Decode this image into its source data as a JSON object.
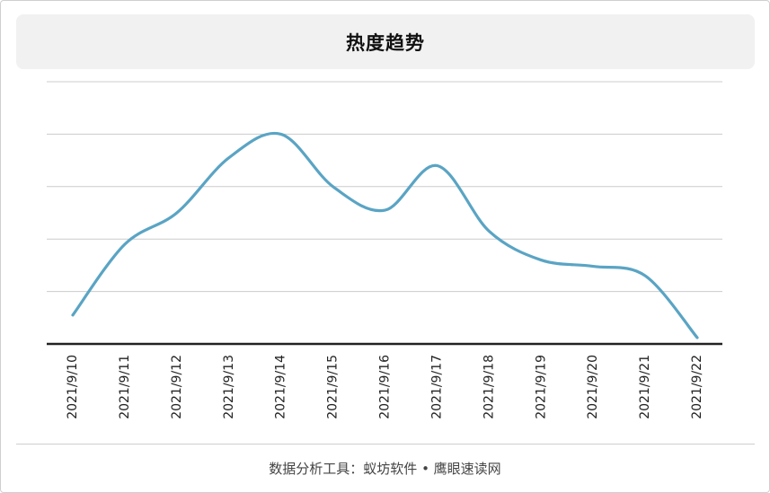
{
  "chart_data": {
    "type": "line",
    "title": "热度趋势",
    "categories": [
      "2021/9/10",
      "2021/9/11",
      "2021/9/12",
      "2021/9/13",
      "2021/9/14",
      "2021/9/15",
      "2021/9/16",
      "2021/9/17",
      "2021/9/18",
      "2021/9/19",
      "2021/9/20",
      "2021/9/21",
      "2021/9/22"
    ],
    "series": [
      {
        "values": [
          0.55,
          1.9,
          2.5,
          3.55,
          4.0,
          3.0,
          2.55,
          3.4,
          2.15,
          1.6,
          1.48,
          1.3,
          0.12
        ]
      }
    ],
    "ylim": [
      0,
      5
    ],
    "y_ticks_labeled": false,
    "grid": true,
    "line_color": "#5aa4c4"
  },
  "footer": {
    "text": "数据分析工具：蚁坊软件 • 鹰眼速读网"
  }
}
